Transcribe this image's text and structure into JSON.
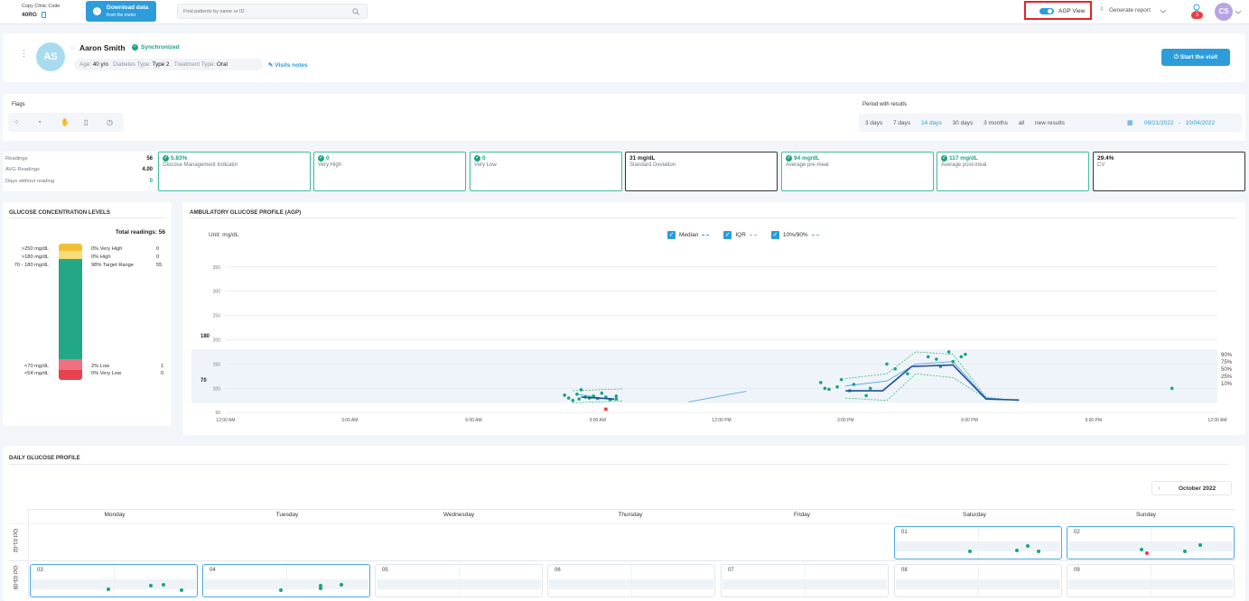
{
  "header": {
    "clinic_code_label": "Copy Clinic Code",
    "clinic_code": "40RG",
    "download_title": "Download data",
    "download_sub": "from the meter",
    "search_placeholder": "Find patients by name or ID",
    "agp_view_label": "AGP View",
    "generate_report_label": "Generate report",
    "notification_count": "3",
    "avatar_initials": "CS"
  },
  "patient": {
    "initials": "AS",
    "name": "Aaron Smith",
    "sync_status": "Synchronized",
    "age_label": "Age:",
    "age_value": "40 y/o",
    "diabetes_label": "Diabetes Type:",
    "diabetes_value": "Type 2",
    "treatment_label": "Treatment Type:",
    "treatment_value": "Oral",
    "visits_notes": "Visits notes",
    "start_visit": "Start the visit"
  },
  "flags": {
    "title": "Flags",
    "period_title": "Period with results",
    "periods": [
      "3 days",
      "7 days",
      "14 days",
      "30 days",
      "3 months",
      "all",
      "new results"
    ],
    "active_period": "14 days",
    "date_from": "09/21/2022",
    "date_sep": "-",
    "date_to": "10/04/2022"
  },
  "summary": {
    "readings_label": "Readings",
    "readings_value": "56",
    "avg_label": "AVG Readings",
    "avg_value": "4.00",
    "no_reading_label": "Days without reading",
    "no_reading_value": "0"
  },
  "metrics": [
    {
      "value": "5.83%",
      "label": "Glucose Management Indicator",
      "ok": true
    },
    {
      "value": "0",
      "label": "Very High",
      "ok": true
    },
    {
      "value": "0",
      "label": "Very Low",
      "ok": true
    },
    {
      "value": "31 mg/dL",
      "label": "Standard Deviation",
      "ok": false
    },
    {
      "value": "94 mg/dL",
      "label": "Average pre-meal",
      "ok": true
    },
    {
      "value": "117 mg/dL",
      "label": "Average post-meal",
      "ok": true
    },
    {
      "value": "29.4%",
      "label": "CV",
      "ok": false
    }
  ],
  "gcl": {
    "title": "GLUCOSE CONCENTRATION LEVELS",
    "total_label": "Total readings:",
    "total_value": "56",
    "levels": [
      {
        "range": ">250 mg/dL",
        "pct": "0% Very High",
        "count": "0"
      },
      {
        "range": ">180 mg/dL",
        "pct": "0% High",
        "count": "0"
      },
      {
        "range": "70 - 180 mg/dL",
        "pct": "98% Target Range",
        "count": "55"
      },
      {
        "range": "<70 mg/dL",
        "pct": "2% Low",
        "count": "1"
      },
      {
        "range": "<54 mg/dL",
        "pct": "0% Very Low",
        "count": "0"
      }
    ],
    "colors": {
      "very_high": "#f2c037",
      "high": "#f8dc7a",
      "target": "#22a887",
      "low": "#f07080",
      "very_low": "#e8404f"
    }
  },
  "agp": {
    "title": "AMBULATORY GLUCOSE PROFILE (AGP)",
    "unit": "Unit: mg/dL",
    "legend": [
      {
        "label": "Median",
        "checked": true
      },
      {
        "label": "IQR",
        "checked": true
      },
      {
        "label": "10%/90%",
        "checked": true
      }
    ],
    "target_high": "180",
    "target_low": "70",
    "percentile_labels": [
      "90%",
      "75%",
      "50%",
      "25%",
      "10%"
    ]
  },
  "chart_data": {
    "type": "line",
    "title": "AMBULATORY GLUCOSE PROFILE (AGP)",
    "ylabel": "mg/dL",
    "ylim": [
      30,
      370
    ],
    "yticks": [
      50,
      100,
      150,
      200,
      250,
      300,
      350
    ],
    "xlim": [
      0,
      24
    ],
    "xtick_labels": [
      "12:00 AM",
      "3:00 AM",
      "6:00 AM",
      "9:00 AM",
      "12:00 PM",
      "3:00 PM",
      "6:00 PM",
      "9:00 PM",
      "12:00 AM"
    ],
    "xticks": [
      0,
      3,
      6,
      9,
      12,
      15,
      18,
      21,
      24
    ],
    "target_range": [
      70,
      180
    ],
    "series": [
      {
        "name": "Median",
        "segments": [
          [
            [
              8.6,
              82
            ],
            [
              9.4,
              78
            ]
          ],
          [
            [
              15.0,
              95
            ],
            [
              15.9,
              95
            ],
            [
              16.6,
              145
            ],
            [
              17.6,
              148
            ],
            [
              18.4,
              78
            ],
            [
              19.2,
              76
            ]
          ]
        ]
      },
      {
        "name": "IQR",
        "segments": [
          [
            [
              8.5,
              88
            ],
            [
              9.4,
              76
            ]
          ],
          [
            [
              11.2,
              72
            ],
            [
              12.6,
              94
            ]
          ],
          [
            [
              15.0,
              105
            ],
            [
              16.0,
              115
            ],
            [
              16.7,
              150
            ],
            [
              17.6,
              155
            ],
            [
              18.4,
              80
            ],
            [
              19.2,
              75
            ]
          ]
        ]
      },
      {
        "name": "10%/90%",
        "segments": [
          [
            [
              8.4,
              95
            ],
            [
              9.6,
              99
            ]
          ],
          [
            [
              8.4,
              70
            ],
            [
              9.6,
              74
            ]
          ],
          [
            [
              15.0,
              120
            ],
            [
              16.0,
              130
            ],
            [
              16.7,
              175
            ],
            [
              17.6,
              170
            ],
            [
              18.4,
              82
            ],
            [
              19.2,
              74
            ]
          ],
          [
            [
              15.0,
              80
            ],
            [
              16.0,
              75
            ],
            [
              16.7,
              130
            ],
            [
              17.6,
              122
            ],
            [
              18.4,
              79
            ],
            [
              19.2,
              76
            ]
          ]
        ]
      }
    ],
    "points": [
      [
        8.2,
        86
      ],
      [
        8.3,
        80
      ],
      [
        8.4,
        75
      ],
      [
        8.5,
        88
      ],
      [
        8.55,
        78
      ],
      [
        8.6,
        97
      ],
      [
        8.7,
        82
      ],
      [
        8.8,
        80
      ],
      [
        8.9,
        84
      ],
      [
        9.0,
        79
      ],
      [
        9.1,
        90
      ],
      [
        9.2,
        82
      ],
      [
        9.3,
        77
      ],
      [
        9.45,
        84
      ],
      [
        9.45,
        78
      ],
      [
        14.4,
        112
      ],
      [
        14.5,
        100
      ],
      [
        14.6,
        98
      ],
      [
        14.8,
        103
      ],
      [
        14.9,
        118
      ],
      [
        15.1,
        95
      ],
      [
        15.2,
        108
      ],
      [
        15.5,
        85
      ],
      [
        15.6,
        100
      ],
      [
        16.0,
        150
      ],
      [
        16.2,
        140
      ],
      [
        16.5,
        130
      ],
      [
        17.0,
        165
      ],
      [
        17.2,
        160
      ],
      [
        17.3,
        145
      ],
      [
        17.5,
        175
      ],
      [
        17.6,
        155
      ],
      [
        17.8,
        165
      ],
      [
        17.9,
        170
      ],
      [
        22.9,
        100
      ]
    ],
    "low_points": [
      [
        9.2,
        57
      ]
    ]
  },
  "daily": {
    "title": "DAILY GLUCOSE PROFILE",
    "month": "October 2022",
    "weekdays": [
      "Monday",
      "Tuesday",
      "Wednesday",
      "Thursday",
      "Friday",
      "Saturday",
      "Sunday"
    ],
    "week_labels": [
      "Oct 01-02",
      "Oct 03-09"
    ],
    "week1_days": [
      "01",
      "02"
    ],
    "week2_days": [
      "03",
      "04",
      "05",
      "06",
      "07",
      "08",
      "09"
    ]
  },
  "colors": {
    "accent": "#2d9cdb",
    "teal": "#1aa383",
    "highlight": "#e3222b"
  }
}
